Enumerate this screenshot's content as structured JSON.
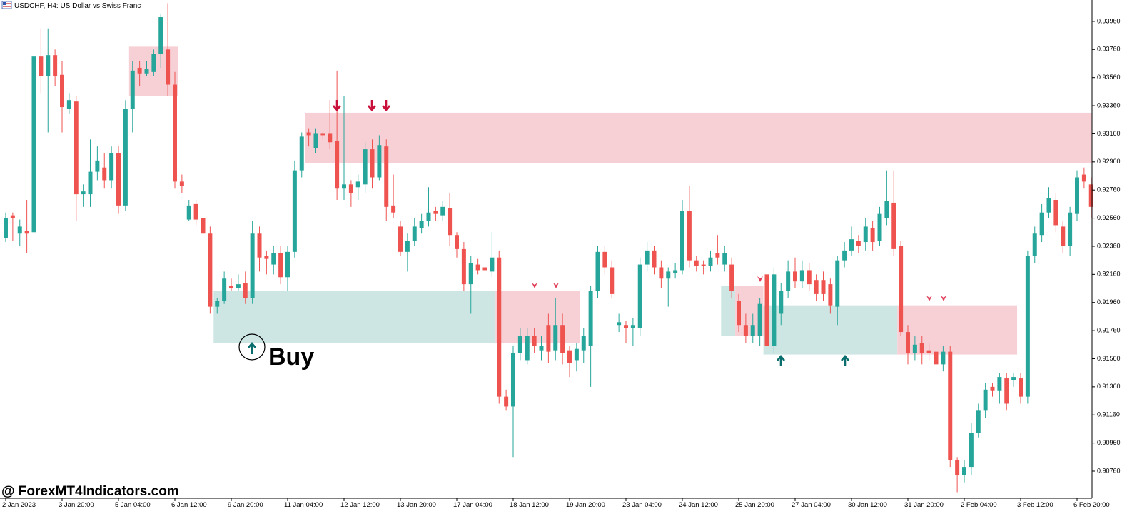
{
  "chart_data": {
    "type": "candlestick",
    "title": "USDCHF, H4:  US Dollar vs Swiss Franc",
    "annotation": "Buy",
    "watermark": "@ ForexMT4Indicators.com",
    "up_color": "#26a69a",
    "down_color": "#ef5350",
    "ylim": [
      0.90567,
      0.94112
    ],
    "yticks": [
      {
        "value": 0.9396,
        "label": "0.93960"
      },
      {
        "value": 0.9376,
        "label": "0.93760"
      },
      {
        "value": 0.9356,
        "label": "0.93560"
      },
      {
        "value": 0.9336,
        "label": "0.93360"
      },
      {
        "value": 0.9316,
        "label": "0.93160"
      },
      {
        "value": 0.9296,
        "label": "0.92960"
      },
      {
        "value": 0.9276,
        "label": "0.92760"
      },
      {
        "value": 0.9256,
        "label": "0.92560"
      },
      {
        "value": 0.9236,
        "label": "0.92360"
      },
      {
        "value": 0.9216,
        "label": "0.92160"
      },
      {
        "value": 0.9196,
        "label": "0.91960"
      },
      {
        "value": 0.9176,
        "label": "0.91760"
      },
      {
        "value": 0.9156,
        "label": "0.91560"
      },
      {
        "value": 0.9136,
        "label": "0.91360"
      },
      {
        "value": 0.9116,
        "label": "0.91160"
      },
      {
        "value": 0.9096,
        "label": "0.90960"
      },
      {
        "value": 0.9076,
        "label": "0.90760"
      }
    ],
    "categories": [
      "2 Jan 2023",
      null,
      null,
      null,
      null,
      null,
      null,
      null,
      "3 Jan 20:00",
      null,
      null,
      null,
      null,
      null,
      null,
      null,
      "5 Jan 04:00",
      null,
      null,
      null,
      null,
      null,
      null,
      null,
      "6 Jan 12:00",
      null,
      null,
      null,
      null,
      null,
      null,
      null,
      "9 Jan 20:00",
      null,
      null,
      null,
      null,
      null,
      null,
      null,
      "11 Jan 04:00",
      null,
      null,
      null,
      null,
      null,
      null,
      null,
      "12 Jan 12:00",
      null,
      null,
      null,
      null,
      null,
      null,
      null,
      "13 Jan 20:00",
      null,
      null,
      null,
      null,
      null,
      null,
      null,
      "17 Jan 04:00",
      null,
      null,
      null,
      null,
      null,
      null,
      null,
      "18 Jan 12:00",
      null,
      null,
      null,
      null,
      null,
      null,
      null,
      "19 Jan 20:00",
      null,
      null,
      null,
      null,
      null,
      null,
      null,
      "23 Jan 04:00",
      null,
      null,
      null,
      null,
      null,
      null,
      null,
      "24 Jan 12:00",
      null,
      null,
      null,
      null,
      null,
      null,
      null,
      "25 Jan 20:00",
      null,
      null,
      null,
      null,
      null,
      null,
      null,
      "27 Jan 04:00",
      null,
      null,
      null,
      null,
      null,
      null,
      null,
      "30 Jan 12:00",
      null,
      null,
      null,
      null,
      null,
      null,
      null,
      "31 Jan 20:00",
      null,
      null,
      null,
      null,
      null,
      null,
      null,
      "2 Feb 04:00",
      null,
      null,
      null,
      null,
      null,
      null,
      null,
      "3 Feb 12:00",
      null,
      null,
      null,
      null,
      null,
      null,
      null,
      "6 Feb 20:00",
      null,
      null
    ],
    "open": [
      0.9242,
      0.9258,
      0.9245,
      0.9247,
      0.9246,
      0.9371,
      0.9357,
      0.9372,
      0.9358,
      0.9334,
      0.9339,
      0.9273,
      0.9273,
      0.9289,
      0.9292,
      0.9283,
      0.9302,
      0.9265,
      0.9334,
      0.9363,
      0.9359,
      0.936,
      0.9373,
      0.9376,
      0.9351,
      0.9282,
      0.9255,
      0.9266,
      0.9256,
      0.9245,
      0.9193,
      0.9197,
      0.9208,
      0.9206,
      0.921,
      0.9199,
      0.9245,
      0.9229,
      0.9223,
      0.9231,
      0.9214,
      0.9232,
      0.929,
      0.9317,
      0.9306,
      0.9316,
      0.9316,
      0.9311,
      0.9277,
      0.928,
      0.9278,
      0.928,
      0.9305,
      0.9285,
      0.9307,
      0.9265,
      0.925,
      0.9232,
      0.924,
      0.9249,
      0.9254,
      0.9261,
      0.9258,
      0.9263,
      0.9244,
      0.9234,
      0.9209,
      0.9223,
      0.9221,
      0.9218,
      0.9228,
      0.9129,
      0.9122,
      0.916,
      0.9155,
      0.9172,
      0.9162,
      0.918,
      0.9162,
      0.918,
      0.9162,
      0.9155,
      0.9162,
      0.9165,
      0.9204,
      0.9232,
      0.9221,
      0.918,
      0.918,
      0.9178,
      0.9178,
      0.9223,
      0.9233,
      0.9221,
      0.9213,
      0.9217,
      0.9219,
      0.9261,
      0.9226,
      0.9223,
      0.9222,
      0.9231,
      0.9223,
      0.9223,
      0.9197,
      0.918,
      0.9172,
      0.9172,
      0.9216,
      0.9165,
      0.9188,
      0.9204,
      0.9218,
      0.9211,
      0.9219,
      0.9212,
      0.9212,
      0.9209,
      0.9193,
      0.9226,
      0.9233,
      0.924,
      0.9239,
      0.9249,
      0.924,
      0.9256,
      0.9267,
      0.9236,
      0.9175,
      0.916,
      0.9167,
      0.9162,
      0.9161,
      0.9152,
      0.9161,
      0.9084,
      0.9073,
      0.9079,
      0.9103,
      0.9119,
      0.9136,
      0.9133,
      0.9142,
      0.9141,
      0.9142,
      0.9129,
      0.9229,
      0.9244,
      0.926,
      0.9269,
      0.925,
      0.9236,
      0.9259,
      0.9287,
      0.928
    ],
    "high": [
      0.926,
      0.926,
      0.9255,
      0.9269,
      0.9381,
      0.9391,
      0.9391,
      0.9376,
      0.9368,
      0.9345,
      0.9343,
      0.928,
      0.9312,
      0.9307,
      0.9302,
      0.9307,
      0.9307,
      0.934,
      0.9368,
      0.9368,
      0.9368,
      0.9376,
      0.9401,
      0.9409,
      0.936,
      0.9287,
      0.9269,
      0.9269,
      0.9259,
      0.925,
      0.9199,
      0.9218,
      0.9213,
      0.9216,
      0.9218,
      0.9254,
      0.925,
      0.9233,
      0.9236,
      0.9236,
      0.9236,
      0.9297,
      0.9317,
      0.932,
      0.932,
      0.9317,
      0.934,
      0.9361,
      0.9343,
      0.9283,
      0.9287,
      0.931,
      0.9312,
      0.9315,
      0.9312,
      0.9287,
      0.9254,
      0.9245,
      0.9256,
      0.9259,
      0.9278,
      0.9264,
      0.9268,
      0.9274,
      0.9246,
      0.9239,
      0.9229,
      0.9227,
      0.9224,
      0.9246,
      0.9233,
      0.9134,
      0.9165,
      0.9178,
      0.9178,
      0.9178,
      0.9172,
      0.9188,
      0.9199,
      0.9188,
      0.9165,
      0.9167,
      0.9178,
      0.9208,
      0.9236,
      0.9236,
      0.9226,
      0.9188,
      0.9183,
      0.9185,
      0.9228,
      0.9239,
      0.9236,
      0.9226,
      0.9221,
      0.9224,
      0.9269,
      0.9279,
      0.9229,
      0.9226,
      0.9233,
      0.9244,
      0.9236,
      0.9228,
      0.9202,
      0.9188,
      0.9188,
      0.9199,
      0.9221,
      0.9221,
      0.921,
      0.9226,
      0.9228,
      0.9226,
      0.9224,
      0.9216,
      0.9218,
      0.9213,
      0.9229,
      0.9239,
      0.925,
      0.9244,
      0.9256,
      0.9254,
      0.9264,
      0.929,
      0.929,
      0.924,
      0.918,
      0.9172,
      0.9172,
      0.9167,
      0.9165,
      0.9165,
      0.9165,
      0.9086,
      0.9084,
      0.911,
      0.9124,
      0.9139,
      0.9139,
      0.9146,
      0.9146,
      0.9146,
      0.9146,
      0.9233,
      0.925,
      0.9266,
      0.9278,
      0.9274,
      0.9254,
      0.9264,
      0.929,
      0.9292,
      0.9285
    ],
    "low": [
      0.9239,
      0.924,
      0.9236,
      0.9231,
      0.9244,
      0.9345,
      0.9317,
      0.935,
      0.9317,
      0.933,
      0.9254,
      0.9264,
      0.9264,
      0.9283,
      0.9277,
      0.9277,
      0.9259,
      0.9261,
      0.9317,
      0.935,
      0.9357,
      0.9357,
      0.9363,
      0.9343,
      0.9277,
      0.9274,
      0.9254,
      0.9251,
      0.9241,
      0.9188,
      0.9188,
      0.9195,
      0.9204,
      0.9204,
      0.9195,
      0.9195,
      0.9218,
      0.9216,
      0.9216,
      0.9209,
      0.9204,
      0.9228,
      0.9285,
      0.9307,
      0.9302,
      0.9312,
      0.9305,
      0.9269,
      0.9269,
      0.9264,
      0.9269,
      0.9274,
      0.9277,
      0.9283,
      0.9254,
      0.9256,
      0.9229,
      0.9218,
      0.9236,
      0.9245,
      0.925,
      0.9254,
      0.9254,
      0.9236,
      0.9228,
      0.9204,
      0.9188,
      0.9216,
      0.9216,
      0.9214,
      0.9124,
      0.9119,
      0.9086,
      0.9155,
      0.9152,
      0.916,
      0.9155,
      0.9153,
      0.9155,
      0.9152,
      0.9143,
      0.9147,
      0.9153,
      0.9136,
      0.9199,
      0.9216,
      0.9199,
      0.9175,
      0.9167,
      0.9165,
      0.9172,
      0.9218,
      0.9216,
      0.9206,
      0.9193,
      0.9213,
      0.9216,
      0.9221,
      0.9218,
      0.9216,
      0.9218,
      0.9223,
      0.9218,
      0.9199,
      0.9175,
      0.9167,
      0.9167,
      0.9165,
      0.916,
      0.916,
      0.918,
      0.9199,
      0.9206,
      0.9206,
      0.9204,
      0.9197,
      0.9197,
      0.9188,
      0.918,
      0.9221,
      0.9229,
      0.9231,
      0.9233,
      0.9233,
      0.9236,
      0.9251,
      0.9229,
      0.9172,
      0.9152,
      0.9155,
      0.9152,
      0.9155,
      0.9143,
      0.9147,
      0.9079,
      0.9061,
      0.9068,
      0.9073,
      0.91,
      0.9114,
      0.9129,
      0.9124,
      0.9119,
      0.9136,
      0.9124,
      0.9124,
      0.9224,
      0.9239,
      0.9256,
      0.9246,
      0.9231,
      0.9229,
      0.9254,
      0.9277,
      0.9256
    ],
    "close": [
      0.9256,
      0.9256,
      0.925,
      0.9245,
      0.9371,
      0.9357,
      0.9372,
      0.9357,
      0.9335,
      0.934,
      0.9273,
      0.9275,
      0.9289,
      0.9297,
      0.9283,
      0.9302,
      0.9265,
      0.9334,
      0.9361,
      0.9359,
      0.9362,
      0.9373,
      0.9399,
      0.9351,
      0.9282,
      0.9279,
      0.9265,
      0.9255,
      0.9245,
      0.9193,
      0.9197,
      0.9213,
      0.9206,
      0.9209,
      0.9199,
      0.9245,
      0.9228,
      0.9227,
      0.9231,
      0.9214,
      0.9232,
      0.929,
      0.9314,
      0.9315,
      0.9316,
      0.9315,
      0.931,
      0.9277,
      0.928,
      0.9274,
      0.9282,
      0.9305,
      0.9285,
      0.9308,
      0.9264,
      0.926,
      0.9232,
      0.924,
      0.925,
      0.9254,
      0.926,
      0.9259,
      0.9264,
      0.9244,
      0.9234,
      0.9209,
      0.9224,
      0.9219,
      0.9219,
      0.9228,
      0.9129,
      0.9122,
      0.916,
      0.9172,
      0.9172,
      0.9165,
      0.9165,
      0.9161,
      0.918,
      0.916,
      0.9153,
      0.9163,
      0.9172,
      0.9204,
      0.9232,
      0.9221,
      0.9202,
      0.9182,
      0.9178,
      0.918,
      0.9223,
      0.9233,
      0.9221,
      0.9213,
      0.9218,
      0.9219,
      0.9261,
      0.9226,
      0.9222,
      0.9222,
      0.9228,
      0.9228,
      0.9231,
      0.9204,
      0.918,
      0.9172,
      0.918,
      0.9195,
      0.9165,
      0.9216,
      0.9204,
      0.9218,
      0.9211,
      0.9219,
      0.9209,
      0.9202,
      0.9202,
      0.9194,
      0.9226,
      0.9233,
      0.9241,
      0.9236,
      0.925,
      0.9239,
      0.9259,
      0.9268,
      0.9234,
      0.9175,
      0.916,
      0.9166,
      0.916,
      0.916,
      0.9152,
      0.9161,
      0.9084,
      0.9073,
      0.9079,
      0.9103,
      0.9119,
      0.9134,
      0.9133,
      0.9143,
      0.9124,
      0.9143,
      0.9129,
      0.9229,
      0.9245,
      0.926,
      0.927,
      0.9251,
      0.9236,
      0.926,
      0.9285,
      0.9282,
      0.9264
    ],
    "zones": [
      {
        "from": 18,
        "to": 24,
        "top": 0.9378,
        "bottom": 0.9343,
        "color": "#f7d0d6"
      },
      {
        "from": 43,
        "to": 154,
        "top": 0.9331,
        "bottom": 0.9295,
        "color": "#f7d0d6"
      },
      {
        "from": 30,
        "to": 69,
        "top": 0.9204,
        "bottom": 0.9167,
        "color": "#cde6e4"
      },
      {
        "from": 70,
        "to": 81,
        "top": 0.9204,
        "bottom": 0.9167,
        "color": "#f7d0d6"
      },
      {
        "from": 102,
        "to": 103,
        "top": 0.9208,
        "bottom": 0.9172,
        "color": "#cde6e4"
      },
      {
        "from": 104,
        "to": 107,
        "top": 0.9208,
        "bottom": 0.9172,
        "color": "#f7d0d6"
      },
      {
        "from": 108,
        "to": 126,
        "top": 0.9194,
        "bottom": 0.9159,
        "color": "#cde6e4"
      },
      {
        "from": 127,
        "to": 143,
        "top": 0.9194,
        "bottom": 0.9159,
        "color": "#f7d0d6"
      }
    ]
  }
}
